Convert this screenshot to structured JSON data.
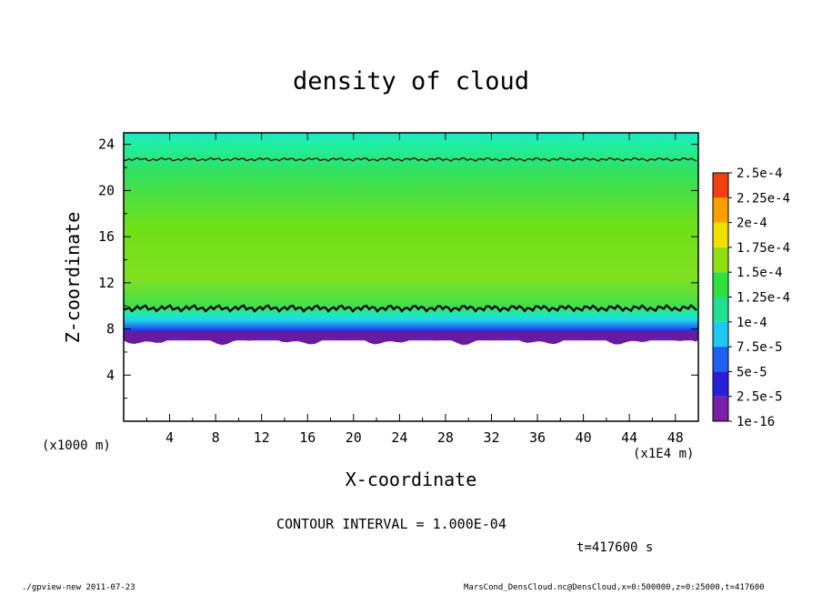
{
  "chart_data": {
    "type": "heatmap",
    "title": "density of cloud",
    "xlabel": "X-coordinate",
    "ylabel": "Z-coordinate",
    "x_unit": "(x1E4 m)",
    "y_unit": "(x1000 m)",
    "xlim": [
      0,
      50
    ],
    "ylim": [
      0,
      25
    ],
    "x_ticks": [
      4,
      8,
      12,
      16,
      20,
      24,
      28,
      32,
      36,
      40,
      44,
      48
    ],
    "y_ticks": [
      4,
      8,
      12,
      16,
      20,
      24
    ],
    "colorbar": {
      "labels": [
        "1e-16",
        "2.5e-5",
        "5e-5",
        "7.5e-5",
        "1e-4",
        "1.25e-4",
        "1.5e-4",
        "1.75e-4",
        "2e-4",
        "2.25e-4",
        "2.5e-4"
      ],
      "colors": [
        "#7a1fa8",
        "#2a1fd8",
        "#2060f0",
        "#1ec8f0",
        "#1ee090",
        "#30e040",
        "#90e010",
        "#f0e000",
        "#f8a000",
        "#f04010",
        "#f0a0a0"
      ]
    },
    "contour_levels": [
      {
        "level": "1.000E-04",
        "z": 9.8
      },
      {
        "level": "1.000E-04",
        "z": 22.7
      }
    ],
    "cloud_layer": {
      "z_bottom": 7.0,
      "z_top": 24.0
    },
    "contour_interval": "CONTOUR INTERVAL = 1.000E-04",
    "time": "t=417600 s"
  },
  "footer": {
    "left": "./gpview-new   2011-07-23",
    "right": "MarsCond_DensCloud.nc@DensCloud,x=0:500000,z=0:25000,t=417600"
  }
}
